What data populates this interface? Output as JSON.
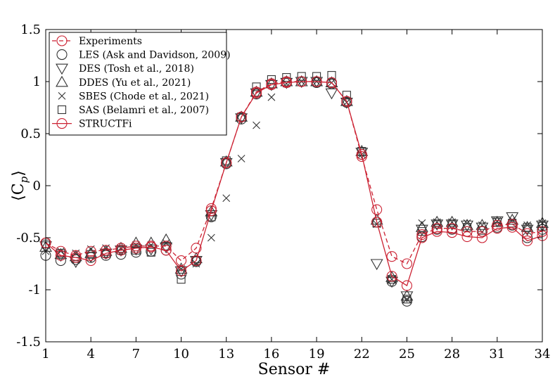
{
  "chart_data": {
    "type": "line",
    "title": "",
    "xlabel": "Sensor #",
    "ylabel": "⟨C",
    "ylabel_sub": "p",
    "ylabel_close": "⟩",
    "xlim": [
      1,
      34
    ],
    "ylim": [
      -1.5,
      1.5
    ],
    "xticks": [
      1,
      4,
      7,
      10,
      13,
      16,
      19,
      22,
      25,
      28,
      31,
      34
    ],
    "yticks": [
      -1.5,
      -1,
      -0.5,
      0,
      0.5,
      1,
      1.5
    ],
    "ytick_labels": [
      "-1.5",
      "-1",
      "-0.5",
      "0",
      "0.5",
      "1",
      "1.5"
    ],
    "grid": false,
    "legend_position": "top-left",
    "x": [
      1,
      2,
      3,
      4,
      5,
      6,
      7,
      8,
      9,
      10,
      11,
      12,
      13,
      14,
      15,
      16,
      17,
      18,
      19,
      20,
      21,
      22,
      23,
      24,
      25,
      26,
      27,
      28,
      29,
      30,
      31,
      32,
      33,
      34
    ],
    "series": [
      {
        "name": "Experiments",
        "marker": "circle",
        "line": "dashed",
        "color": "#cc2233",
        "values": [
          -0.55,
          -0.63,
          -0.67,
          -0.63,
          -0.62,
          -0.6,
          -0.58,
          -0.58,
          -0.58,
          -0.72,
          -0.6,
          -0.22,
          0.22,
          0.66,
          0.9,
          0.98,
          1.0,
          1.0,
          1.0,
          0.99,
          0.81,
          0.28,
          -0.23,
          -0.68,
          -0.75,
          -0.47,
          -0.41,
          -0.41,
          -0.44,
          -0.44,
          -0.38,
          -0.37,
          -0.46,
          -0.44
        ]
      },
      {
        "name": "LES (Ask and Davidson, 2009)",
        "marker": "circle",
        "line": "none",
        "color": "#333333",
        "values": [
          -0.67,
          -0.72,
          -0.71,
          -0.69,
          -0.67,
          -0.66,
          -0.64,
          -0.63,
          -0.62,
          -0.85,
          -0.73,
          -0.3,
          0.21,
          0.64,
          0.88,
          0.97,
          0.99,
          1.0,
          0.99,
          0.98,
          0.8,
          0.3,
          -0.35,
          -0.92,
          -1.11,
          -0.49,
          -0.42,
          -0.42,
          -0.44,
          -0.44,
          -0.4,
          -0.38,
          -0.5,
          -0.42
        ]
      },
      {
        "name": "DES (Tosh et al., 2018)",
        "marker": "triangle-down",
        "line": "none",
        "color": "#333333",
        "values": [
          -0.58,
          -0.67,
          -0.73,
          -0.68,
          -0.65,
          -0.62,
          -0.61,
          -0.61,
          -0.59,
          -0.82,
          -0.72,
          -0.28,
          0.22,
          0.65,
          0.89,
          0.97,
          0.99,
          1.0,
          1.0,
          0.89,
          0.8,
          0.32,
          -0.75,
          -0.92,
          -1.06,
          -0.42,
          -0.37,
          -0.37,
          -0.38,
          -0.4,
          -0.34,
          -0.3,
          -0.42,
          -0.38
        ]
      },
      {
        "name": "DDES (Yu et al., 2021)",
        "marker": "triangle-up",
        "line": "none",
        "color": "#333333",
        "values": [
          -0.59,
          -0.66,
          -0.68,
          -0.65,
          -0.63,
          -0.6,
          -0.55,
          -0.55,
          -0.52,
          -0.8,
          -0.7,
          -0.25,
          0.23,
          0.66,
          0.9,
          0.98,
          1.0,
          1.0,
          1.0,
          0.99,
          0.81,
          0.33,
          -0.33,
          -0.88,
          -1.06,
          -0.4,
          -0.35,
          -0.35,
          -0.38,
          -0.38,
          -0.35,
          -0.33,
          -0.4,
          -0.36
        ]
      },
      {
        "name": "SBES (Chode et al., 2021)",
        "marker": "x",
        "line": "none",
        "color": "#333333",
        "values": [
          -0.63,
          -0.63,
          -0.65,
          -0.61,
          -0.6,
          -0.6,
          -0.57,
          -0.57,
          -0.55,
          -0.8,
          -0.75,
          -0.5,
          -0.12,
          0.26,
          0.58,
          0.85,
          0.98,
          1.0,
          1.0,
          0.99,
          0.8,
          0.3,
          -0.37,
          -0.9,
          -1.09,
          -0.36,
          -0.35,
          -0.35,
          -0.36,
          -0.38,
          -0.34,
          -0.33,
          -0.38,
          -0.36
        ]
      },
      {
        "name": "SAS (Belamri et al., 2007)",
        "marker": "square",
        "line": "none",
        "color": "#333333",
        "values": [
          -0.56,
          -0.65,
          -0.7,
          -0.66,
          -0.65,
          -0.62,
          -0.62,
          -0.64,
          -0.58,
          -0.9,
          -0.72,
          -0.3,
          0.24,
          0.66,
          0.95,
          1.02,
          1.04,
          1.05,
          1.05,
          1.06,
          0.87,
          0.33,
          -0.36,
          -0.9,
          -1.09,
          -0.44,
          -0.37,
          -0.37,
          -0.4,
          -0.43,
          -0.35,
          -0.36,
          -0.4,
          -0.39
        ]
      },
      {
        "name": "STRUCTFi",
        "marker": "circle",
        "line": "solid",
        "color": "#cc2233",
        "values": [
          -0.55,
          -0.67,
          -0.69,
          -0.72,
          -0.65,
          -0.62,
          -0.6,
          -0.59,
          -0.62,
          -0.82,
          -0.72,
          -0.24,
          0.22,
          0.66,
          0.89,
          0.97,
          0.99,
          1.0,
          1.0,
          0.99,
          0.81,
          0.3,
          -0.35,
          -0.87,
          -0.96,
          -0.5,
          -0.44,
          -0.45,
          -0.49,
          -0.5,
          -0.41,
          -0.4,
          -0.53,
          -0.48
        ]
      }
    ]
  }
}
